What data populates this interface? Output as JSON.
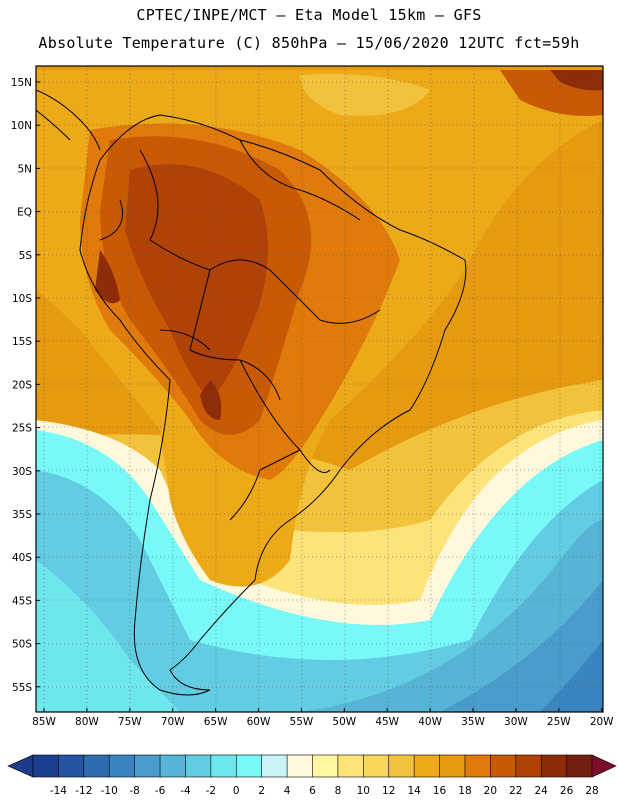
{
  "header": {
    "line1": "CPTEC/INPE/MCT –  Eta Model 15km – GFS",
    "line2": "Absolute Temperature (C) 850hPa – 15/06/2020 12UTC fct=59h"
  },
  "map": {
    "lat_labels": [
      "15N",
      "10N",
      "5N",
      "EQ",
      "5S",
      "10S",
      "15S",
      "20S",
      "25S",
      "30S",
      "35S",
      "40S",
      "45S",
      "50S",
      "55S"
    ],
    "lon_labels": [
      "85W",
      "80W",
      "75W",
      "70W",
      "65W",
      "60W",
      "55W",
      "50W",
      "45W",
      "40W",
      "35W",
      "30W",
      "25W",
      "20W"
    ]
  },
  "legend": {
    "values": [
      "-14",
      "-12",
      "-10",
      "-8",
      "-6",
      "-4",
      "-2",
      "0",
      "2",
      "4",
      "6",
      "8",
      "10",
      "12",
      "14",
      "16",
      "18",
      "20",
      "22",
      "24",
      "26",
      "28"
    ],
    "colors": [
      "#1b3f8f",
      "#2555a0",
      "#2e6cb0",
      "#3a85c0",
      "#4a9ccc",
      "#58b4d6",
      "#62cde2",
      "#6ee6ee",
      "#78f8f8",
      "#c8f4f8",
      "#fff8dc",
      "#fff7a0",
      "#fde47a",
      "#f8d65a",
      "#f2c23c",
      "#ecaa18",
      "#e69a10",
      "#e07a0a",
      "#c85a06",
      "#b04208",
      "#8e2c0a",
      "#72200e"
    ],
    "low_cap": "#1e3a8a",
    "high_cap": "#7a0e28"
  }
}
